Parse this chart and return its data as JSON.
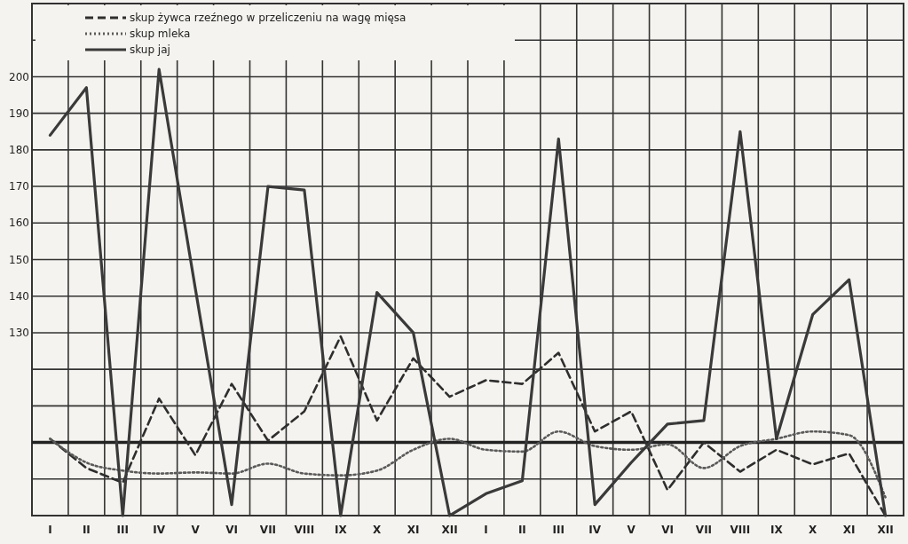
{
  "chart_data": {
    "type": "line",
    "categories": [
      "I",
      "II",
      "III",
      "IV",
      "V",
      "VI",
      "VII",
      "VIII",
      "IX",
      "X",
      "XI",
      "XII",
      "I",
      "II",
      "III",
      "IV",
      "V",
      "VI",
      "VII",
      "VIII",
      "IX",
      "X",
      "XI",
      "XII"
    ],
    "series": [
      {
        "name": "skup żywca rzeźnego w przeliczeniu na wagę mięsa",
        "color": "#2e2e2e",
        "line_style": "dashed",
        "values": [
          101,
          93,
          89,
          112,
          96.5,
          116,
          100.5,
          108.5,
          129,
          106,
          123,
          112.5,
          117,
          116,
          124.5,
          103,
          108.5,
          87,
          100,
          92,
          98,
          94,
          97,
          80
        ]
      },
      {
        "name": "skup mleka",
        "color": "#5a5a5a",
        "line_style": "dotted",
        "values": [
          101,
          94.5,
          92.3,
          91.5,
          91.8,
          91.5,
          94.2,
          91.5,
          91,
          92.3,
          98,
          101,
          98,
          97.5,
          103,
          99,
          98,
          99.5,
          93,
          99,
          101,
          103,
          102,
          85
        ]
      },
      {
        "name": "skup jaj",
        "color": "#3a3a3a",
        "line_style": "solid",
        "values": [
          184,
          197,
          80,
          202,
          142,
          83,
          170,
          169,
          80,
          141,
          130,
          80,
          86,
          89.5,
          183,
          83,
          94.5,
          105,
          106,
          185,
          101,
          135,
          144.5,
          80
        ]
      }
    ],
    "ylim": [
      80,
      220
    ],
    "yticks": [
      {
        "value": 80,
        "label": null
      },
      {
        "value": 90,
        "label": null
      },
      {
        "value": 100,
        "label": null
      },
      {
        "value": 110,
        "label": null
      },
      {
        "value": 120,
        "label": null
      },
      130,
      140,
      150,
      160,
      170,
      180,
      190,
      200,
      {
        "value": 210,
        "label": null
      },
      {
        "value": 220,
        "label": null
      }
    ],
    "ref_lines": [
      {
        "axis": "y",
        "value": 100
      }
    ],
    "grid": true,
    "legend": "top left"
  }
}
